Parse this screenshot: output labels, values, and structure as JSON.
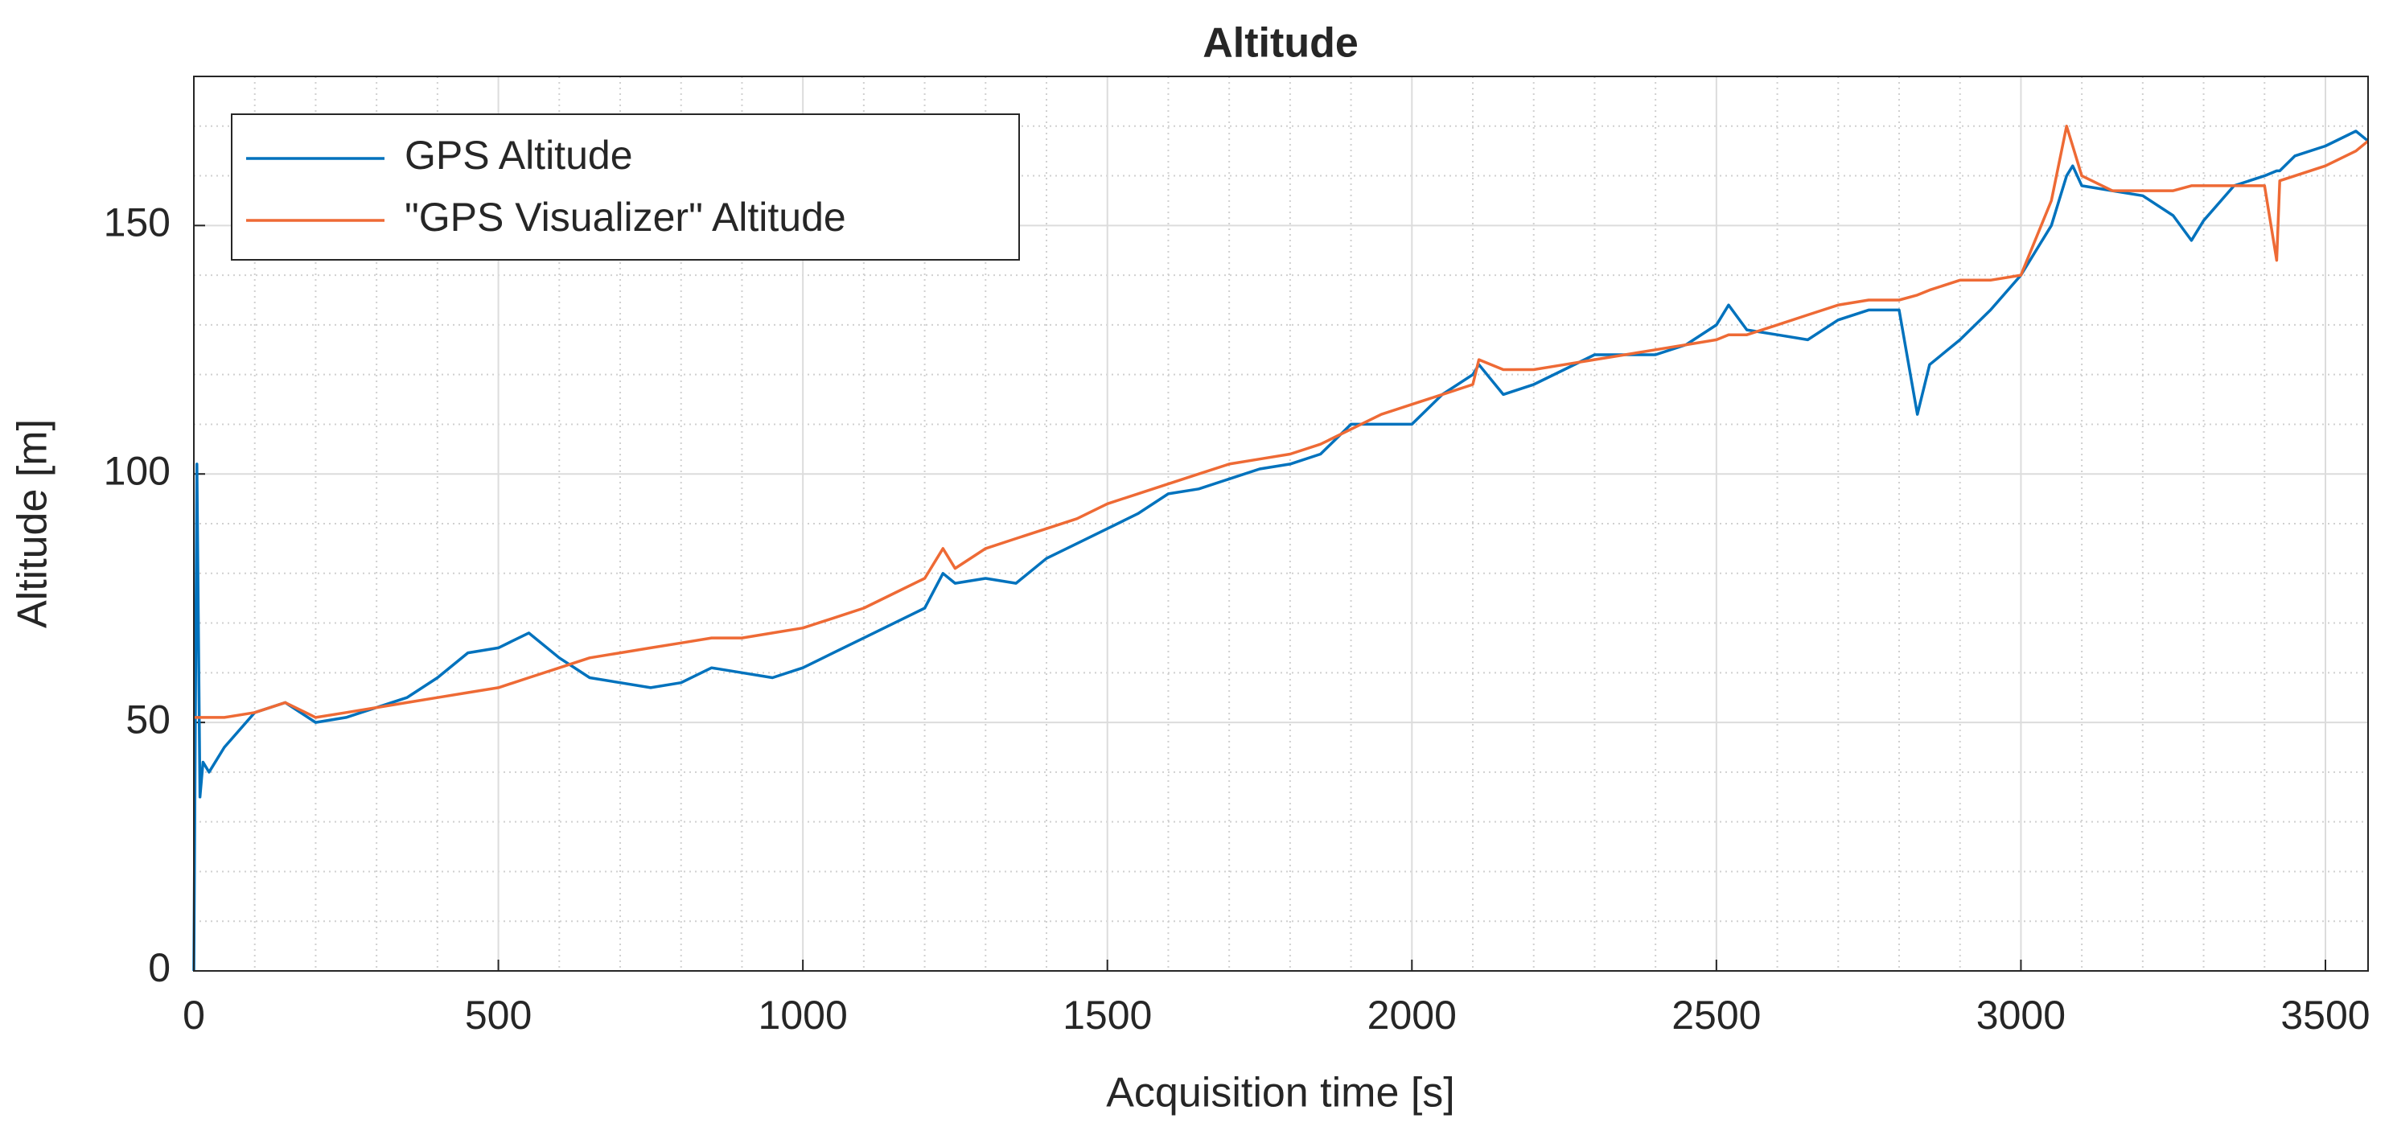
{
  "chart_data": {
    "type": "line",
    "title": "Altitude",
    "x_label": "Acquisition time [s]",
    "y_label": "Altitude [m]",
    "x": [
      0,
      5,
      10,
      15,
      25,
      50,
      100,
      150,
      200,
      250,
      300,
      350,
      400,
      450,
      500,
      550,
      600,
      650,
      700,
      750,
      800,
      850,
      900,
      950,
      1000,
      1050,
      1100,
      1150,
      1200,
      1230,
      1250,
      1300,
      1350,
      1400,
      1450,
      1500,
      1550,
      1600,
      1650,
      1700,
      1750,
      1800,
      1850,
      1900,
      1950,
      2000,
      2050,
      2100,
      2110,
      2150,
      2200,
      2250,
      2300,
      2350,
      2400,
      2450,
      2500,
      2520,
      2550,
      2600,
      2650,
      2700,
      2750,
      2800,
      2830,
      2850,
      2900,
      2950,
      3000,
      3050,
      3075,
      3085,
      3100,
      3150,
      3200,
      3250,
      3280,
      3300,
      3350,
      3400,
      3420,
      3425,
      3450,
      3500,
      3550,
      3570
    ],
    "series": [
      {
        "name": "GPS Altitude",
        "color": "#0072bd",
        "values": [
          0,
          102,
          35,
          42,
          40,
          45,
          52,
          54,
          50,
          51,
          53,
          55,
          59,
          64,
          65,
          68,
          63,
          59,
          58,
          57,
          58,
          61,
          60,
          59,
          61,
          64,
          67,
          70,
          73,
          80,
          78,
          79,
          78,
          83,
          86,
          89,
          92,
          96,
          97,
          99,
          101,
          102,
          104,
          110,
          110,
          110,
          116,
          120,
          122,
          116,
          118,
          121,
          124,
          124,
          124,
          126,
          130,
          134,
          129,
          128,
          127,
          131,
          133,
          133,
          112,
          122,
          127,
          133,
          140,
          150,
          160,
          162,
          158,
          157,
          156,
          152,
          147,
          151,
          158,
          160,
          161,
          161,
          164,
          166,
          169,
          167
        ]
      },
      {
        "name": "\"GPS Visualizer\" Altitude",
        "color": "#ee6a35",
        "values": [
          51,
          51,
          51,
          51,
          51,
          51,
          52,
          54,
          51,
          52,
          53,
          54,
          55,
          56,
          57,
          59,
          61,
          63,
          64,
          65,
          66,
          67,
          67,
          68,
          69,
          71,
          73,
          76,
          79,
          85,
          81,
          85,
          87,
          89,
          91,
          94,
          96,
          98,
          100,
          102,
          103,
          104,
          106,
          109,
          112,
          114,
          116,
          118,
          123,
          121,
          121,
          122,
          123,
          124,
          125,
          126,
          127,
          128,
          128,
          130,
          132,
          134,
          135,
          135,
          136,
          137,
          139,
          139,
          140,
          155,
          170,
          166,
          160,
          157,
          157,
          157,
          158,
          158,
          158,
          158,
          143,
          159,
          160,
          162,
          165,
          167
        ]
      }
    ],
    "xlim": [
      0,
      3570
    ],
    "ylim": [
      0,
      180
    ],
    "xticks": [
      0,
      500,
      1000,
      1500,
      2000,
      2500,
      3000,
      3500
    ],
    "yticks": [
      0,
      50,
      100,
      150
    ],
    "xminorticks": [
      100,
      200,
      300,
      400,
      600,
      700,
      800,
      900,
      1100,
      1200,
      1300,
      1400,
      1600,
      1700,
      1800,
      1900,
      2100,
      2200,
      2300,
      2400,
      2600,
      2700,
      2800,
      2900,
      3100,
      3200,
      3300,
      3400
    ],
    "yminorticks": [
      10,
      20,
      30,
      40,
      60,
      70,
      80,
      90,
      110,
      120,
      130,
      140,
      160,
      170
    ],
    "grid": true,
    "minor_grid": true,
    "legend": "upper-left"
  }
}
